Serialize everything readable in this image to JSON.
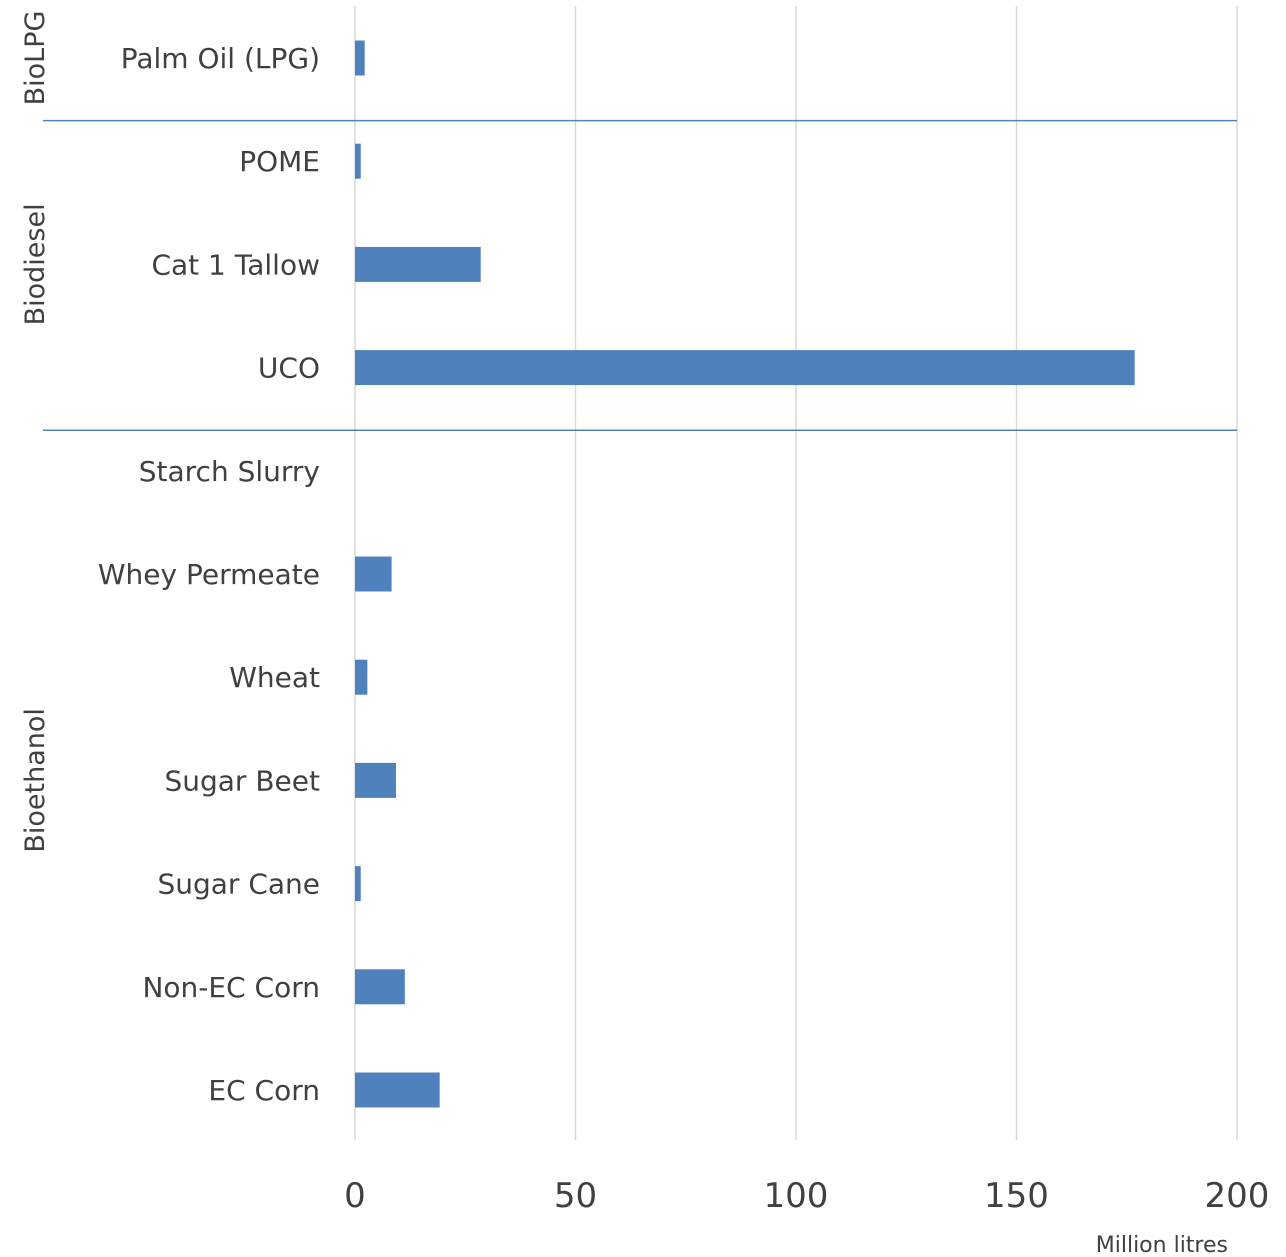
{
  "chart_data": {
    "type": "bar",
    "orientation": "horizontal",
    "xlabel": "Million litres",
    "xlim": [
      0,
      200
    ],
    "xticks": [
      0,
      50,
      100,
      150,
      200
    ],
    "grid": "vertical",
    "bar_color": "#4F81BD",
    "separator_color": "#4F81BD",
    "gridline_color": "#D9D9D9",
    "groups": [
      {
        "name": "BioLPG",
        "categories": [
          "Palm Oil (LPG)"
        ],
        "values": [
          2.2
        ]
      },
      {
        "name": "Biodiesel",
        "categories": [
          "POME",
          "Cat 1 Tallow",
          "UCO"
        ],
        "values": [
          1.3,
          28.5,
          176.8
        ]
      },
      {
        "name": "Bioethanol",
        "categories": [
          "Starch Slurry",
          "Whey Permeate",
          "Wheat",
          "Sugar Beet",
          "Sugar Cane",
          "Non-EC Corn",
          "EC Corn"
        ],
        "values": [
          0,
          8.3,
          2.8,
          9.3,
          1.3,
          11.3,
          19.2
        ]
      }
    ]
  }
}
